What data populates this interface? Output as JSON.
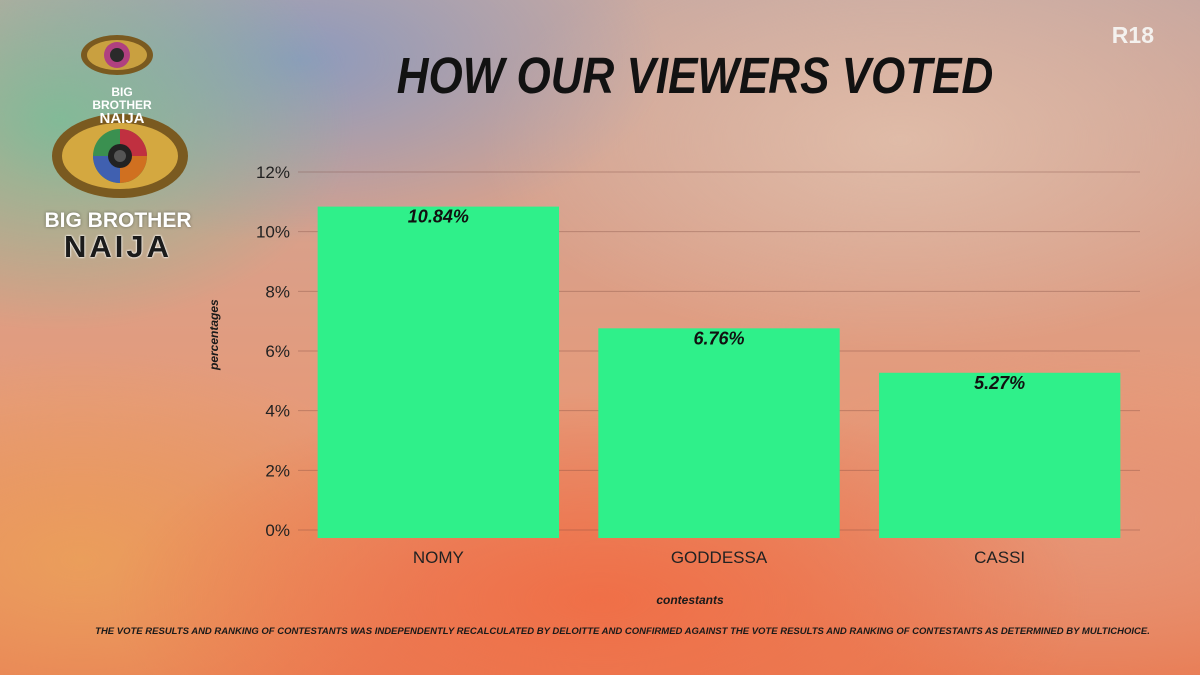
{
  "rating": "R18",
  "logo": {
    "small_line1": "BIG BROTHER",
    "small_line2": "NAIJA",
    "large_line1": "BIG BROTHER",
    "large_line2": "NAIJA"
  },
  "chart_data": {
    "type": "bar",
    "title": "HOW OUR VIEWERS VOTED",
    "xlabel": "contestants",
    "ylabel": "percentages",
    "categories": [
      "NOMY",
      "GODDESSA",
      "CASSI"
    ],
    "values": [
      10.84,
      6.76,
      5.27
    ],
    "data_labels": [
      "10.84%",
      "6.76%",
      "5.27%"
    ],
    "ylim": [
      0,
      12
    ],
    "yticks": [
      "0%",
      "2%",
      "4%",
      "6%",
      "8%",
      "10%",
      "12%"
    ],
    "bar_color": "#2ff08a",
    "grid": true
  },
  "footnote": "THE VOTE RESULTS AND RANKING OF CONTESTANTS WAS INDEPENDENTLY RECALCULATED BY DELOITTE AND CONFIRMED AGAINST THE VOTE RESULTS AND RANKING OF CONTESTANTS AS DETERMINED BY MULTICHOICE."
}
